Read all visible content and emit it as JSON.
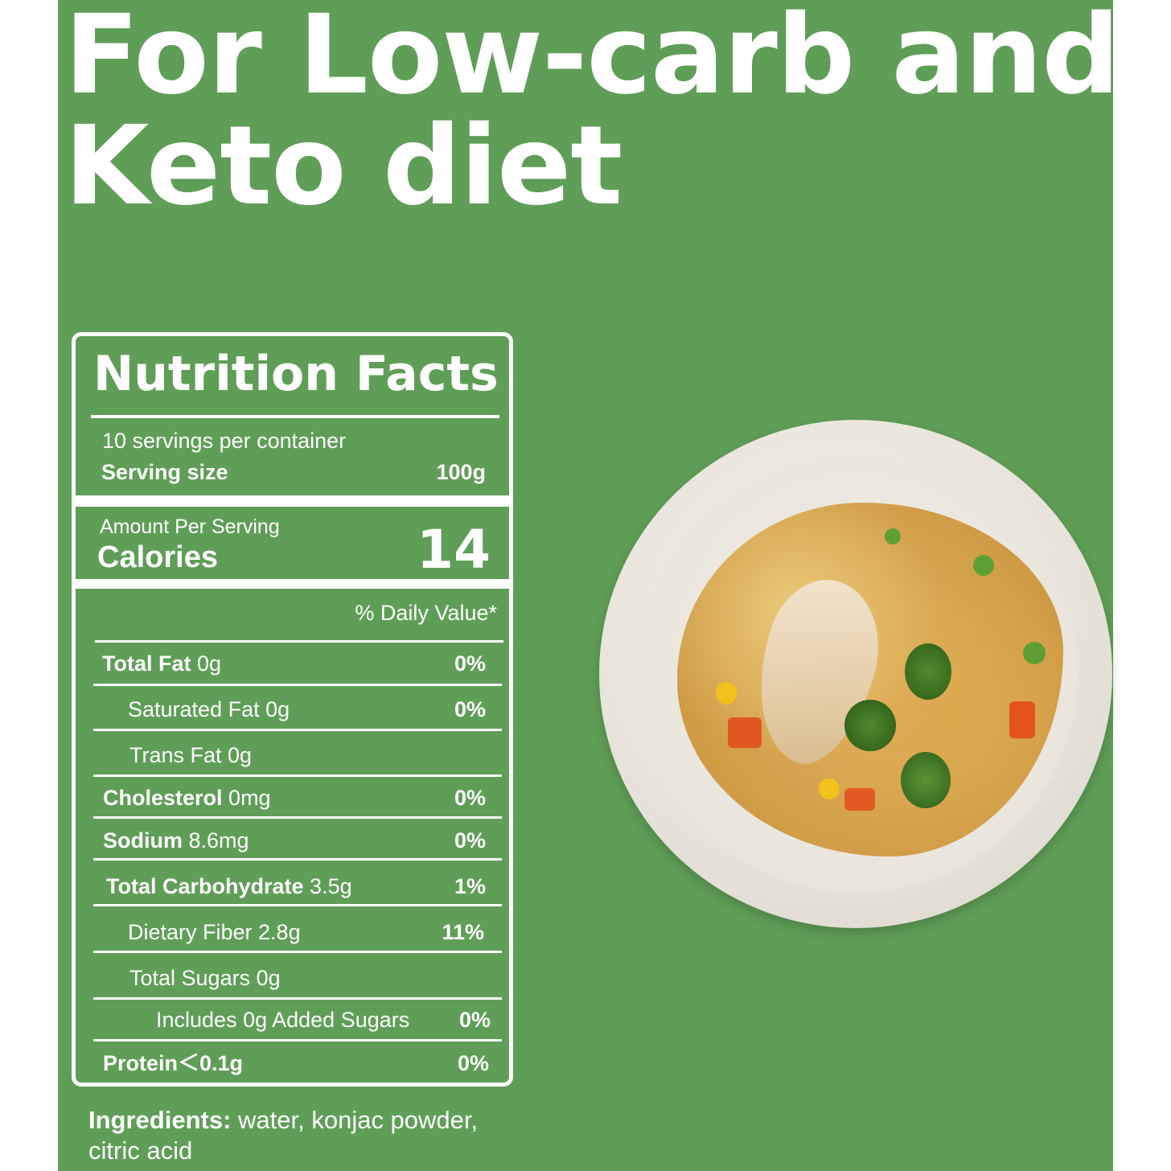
{
  "headline": {
    "line1": "For Low-carb and",
    "line2": "Keto diet"
  },
  "nutrition": {
    "title": "Nutrition Facts",
    "servings": "10 servings per container",
    "serving_size_label": "Serving size",
    "serving_size_value": "100g",
    "amount_per_serving": "Amount Per Serving",
    "calories_label": "Calories",
    "calories_value": "14",
    "daily_value_header": "% Daily Value*",
    "rows": [
      {
        "label": "Total Fat",
        "amount": "0g",
        "dv": "0%"
      },
      {
        "label": "Saturated Fat 0g",
        "dv": "0%"
      },
      {
        "label": "Trans Fat 0g"
      },
      {
        "label": "Cholesterol",
        "amount": "0mg",
        "dv": "0%"
      },
      {
        "label": "Sodium",
        "amount": "8.6mg",
        "dv": "0%"
      },
      {
        "label": "Total Carbohydrate",
        "amount": "3.5g",
        "dv": "1%"
      },
      {
        "label": "Dietary Fiber 2.8g",
        "dv": "11%"
      },
      {
        "label": "Total Sugars 0g"
      },
      {
        "label": "Includes 0g Added Sugars",
        "dv": "0%"
      },
      {
        "label": "Protein",
        "amount": "＜0.1g",
        "dv": "0%"
      }
    ]
  },
  "ingredients": {
    "label": "Ingredients:",
    "text": " water, konjac powder,",
    "text2": "citric acid"
  },
  "colors": {
    "background": "#5f9e57",
    "text": "#ffffff"
  }
}
